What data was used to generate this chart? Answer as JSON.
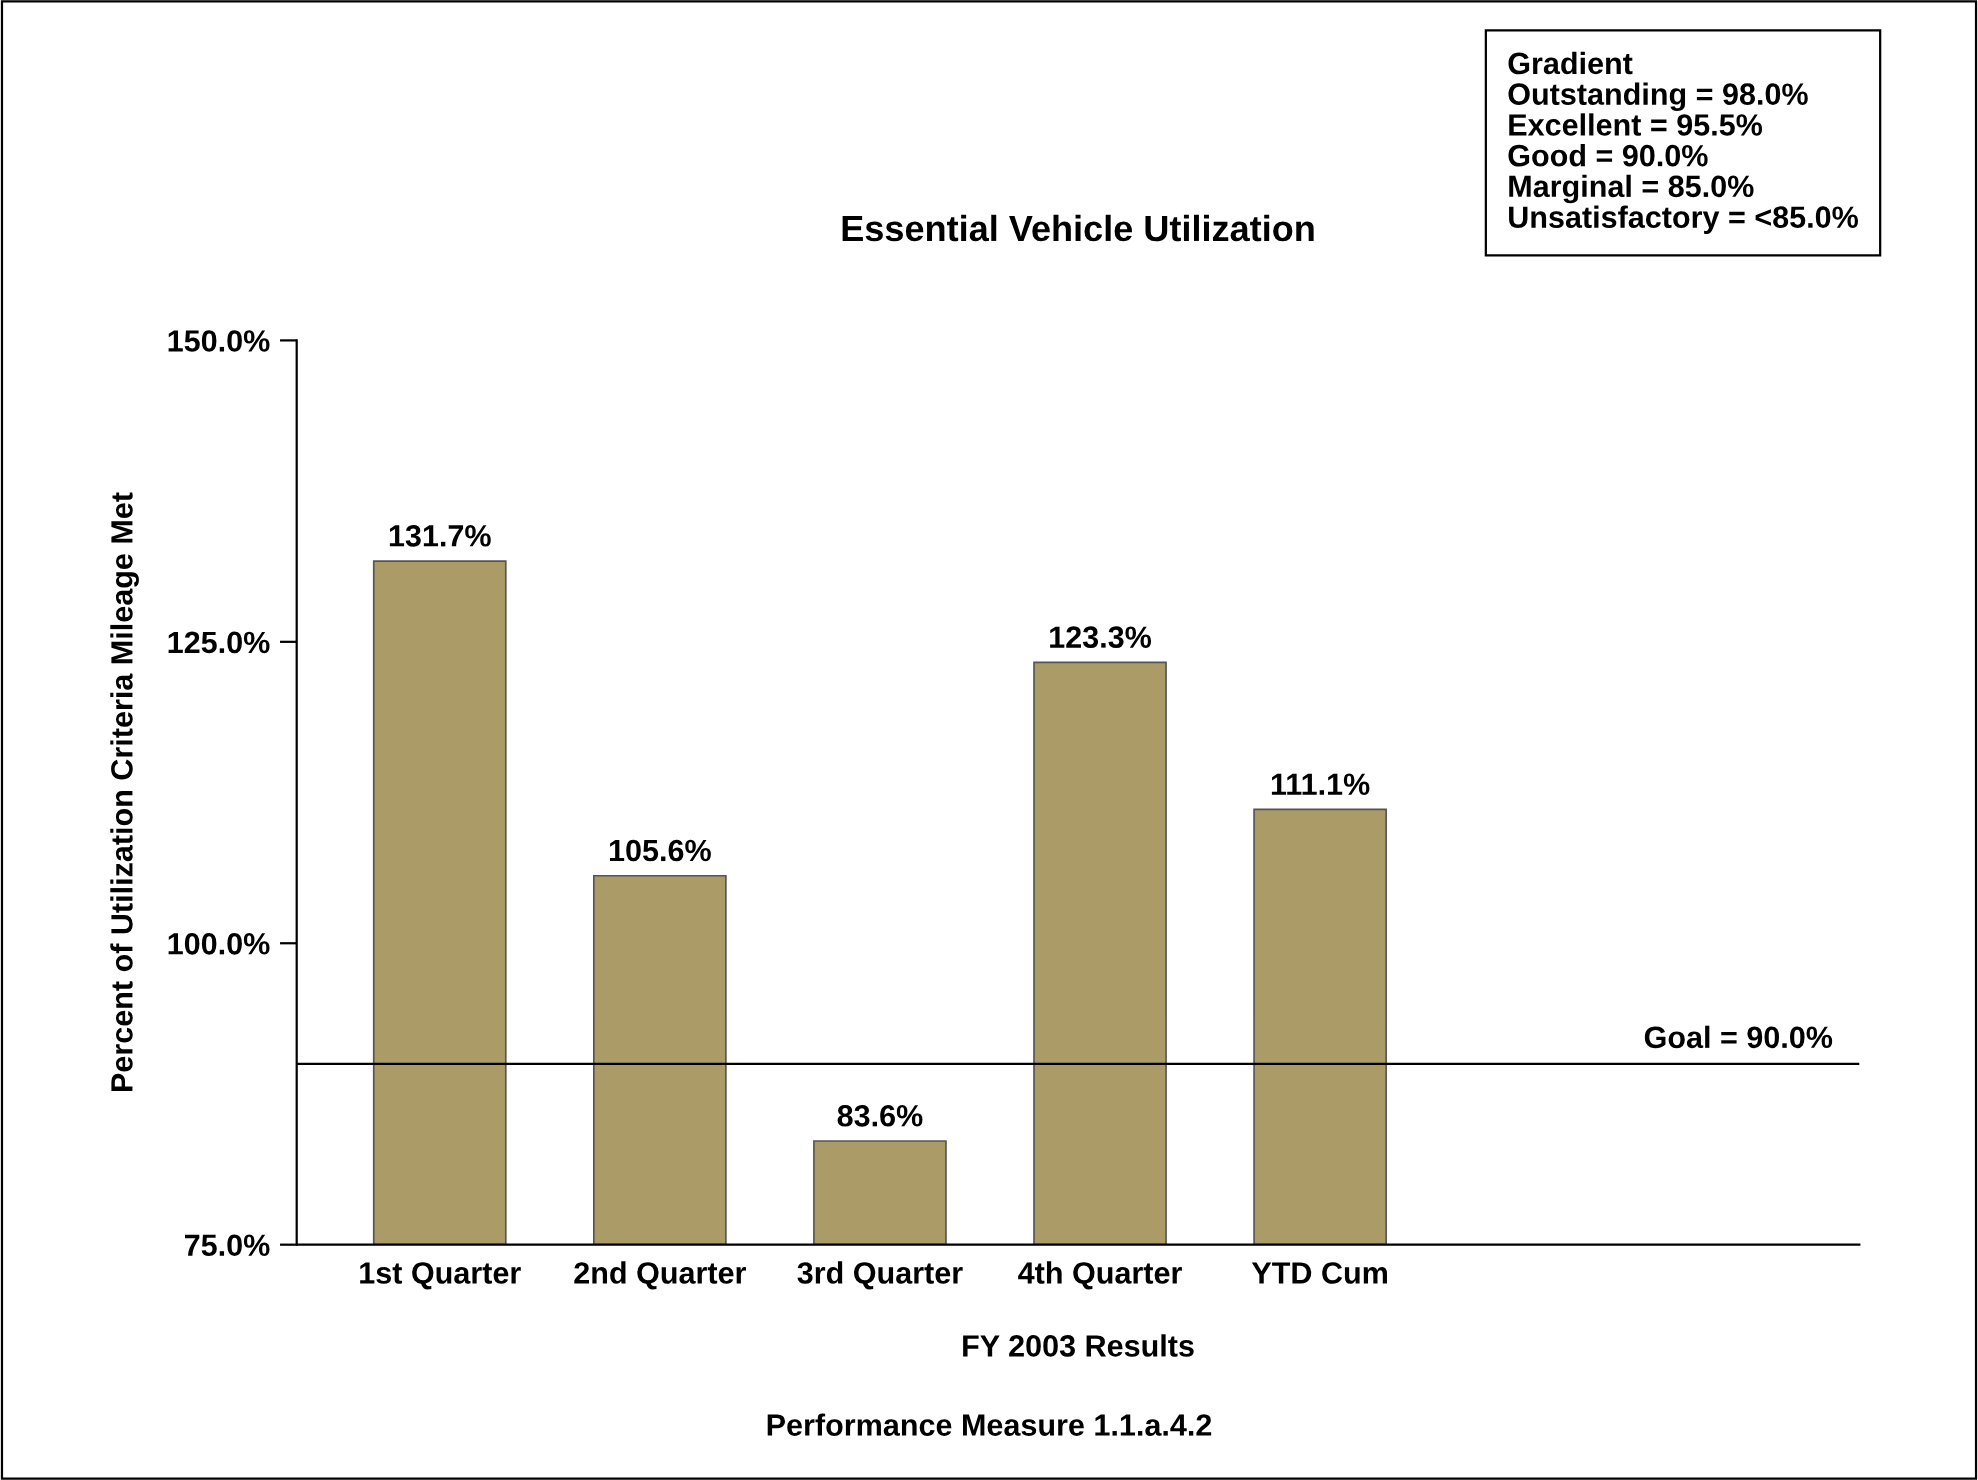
{
  "chart_data": {
    "type": "bar",
    "title": "Essential Vehicle Utilization",
    "xlabel": "FY 2003 Results",
    "ylabel": "Percent of Utilization Criteria Mileage Met",
    "categories": [
      "1st Quarter",
      "2nd Quarter",
      "3rd Quarter",
      "4th Quarter",
      "YTD Cum"
    ],
    "values": [
      131.7,
      105.6,
      83.6,
      123.3,
      111.1
    ],
    "value_labels": [
      "131.7%",
      "105.6%",
      "83.6%",
      "123.3%",
      "111.1%"
    ],
    "color": "#ab9b66",
    "ylim": [
      75,
      150
    ],
    "yticks": [
      {
        "value": 75,
        "label": "75.0%"
      },
      {
        "value": 100,
        "label": "100.0%"
      },
      {
        "value": 125,
        "label": "125.0%"
      },
      {
        "value": 150,
        "label": "150.0%"
      }
    ],
    "grid": false,
    "legend": false,
    "ref_lines": [
      {
        "axis": "y",
        "value": 90,
        "label": "Goal = 90.0%",
        "color": "#000000"
      }
    ],
    "annotations": [
      "Gradient\nOutstanding = 98.0%\nExcellent = 95.5%\nGood = 90.0%\nMarginal = 85.0%\nUnsatisfactory = <85.0%",
      "Performance Measure 1.1.a.4.2"
    ]
  }
}
